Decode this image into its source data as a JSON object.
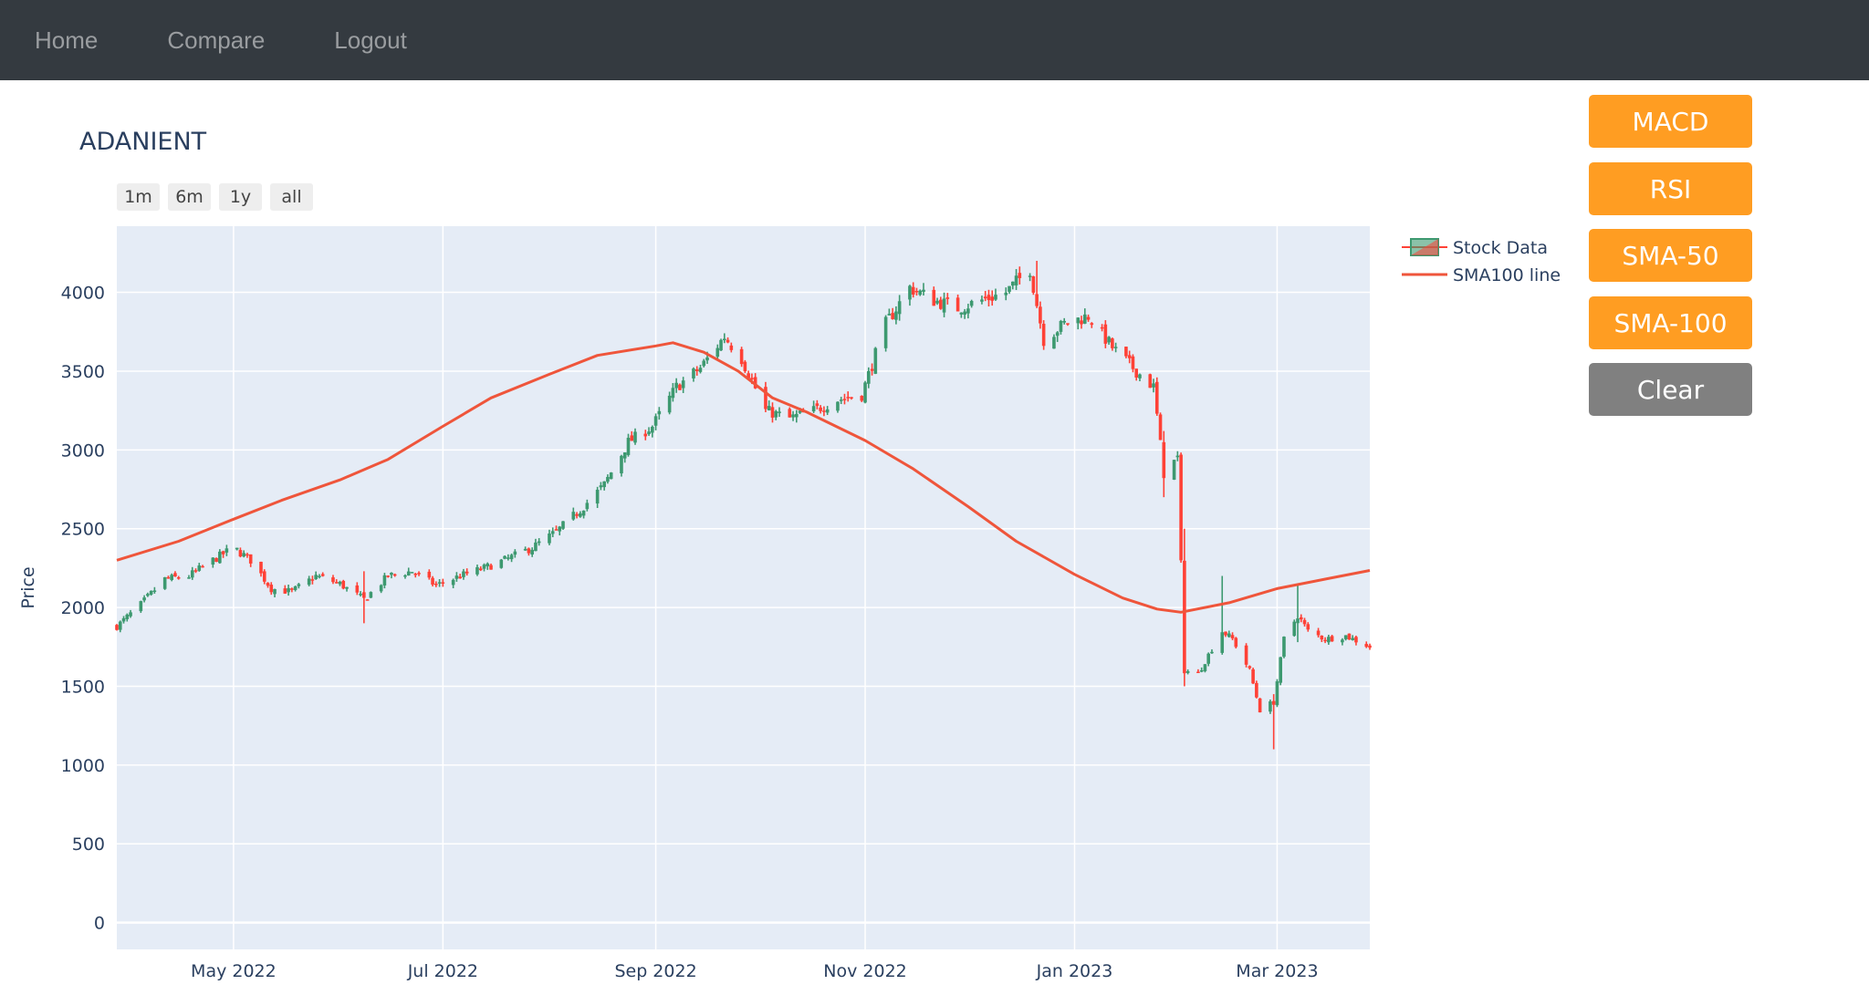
{
  "nav": {
    "home": "Home",
    "compare": "Compare",
    "logout": "Logout"
  },
  "side_buttons": {
    "macd": "MACD",
    "rsi": "RSI",
    "sma50": "SMA-50",
    "sma100": "SMA-100",
    "clear": "Clear"
  },
  "range_buttons": [
    "1m",
    "6m",
    "1y",
    "all"
  ],
  "colors": {
    "increasing": "#3d9970",
    "decreasing": "#ff4136",
    "sma_line": "#ef553b",
    "plot_bg": "#e5ecf6",
    "orange": "#ff9d22",
    "gray": "#808080"
  },
  "chart_data": {
    "type": "candlestick",
    "title": "ADANIENT",
    "ylabel": "Price",
    "xlabel": "",
    "grid": true,
    "legend_position": "top-right",
    "xlim": [
      "2022-03-28",
      "2023-03-28"
    ],
    "ylim": [
      -170,
      4420
    ],
    "y_ticks": [
      0,
      500,
      1000,
      1500,
      2000,
      2500,
      3000,
      3500,
      4000
    ],
    "x_ticks": [
      {
        "date": "2022-05-01",
        "label": "May 2022"
      },
      {
        "date": "2022-07-01",
        "label": "Jul 2022"
      },
      {
        "date": "2022-09-01",
        "label": "Sep 2022"
      },
      {
        "date": "2022-11-01",
        "label": "Nov 2022"
      },
      {
        "date": "2023-01-01",
        "label": "Jan 2023"
      },
      {
        "date": "2023-03-01",
        "label": "Mar 2023"
      }
    ],
    "legend": [
      "Stock Data",
      "SMA100 line"
    ],
    "series": [
      {
        "name": "Stock Data",
        "type": "candlestick",
        "close_anchors": [
          [
            "2022-03-28",
            1880
          ],
          [
            "2022-04-04",
            2020
          ],
          [
            "2022-04-11",
            2180
          ],
          [
            "2022-04-18",
            2200
          ],
          [
            "2022-04-25",
            2300
          ],
          [
            "2022-05-01",
            2380
          ],
          [
            "2022-05-06",
            2300
          ],
          [
            "2022-05-12",
            2120
          ],
          [
            "2022-05-18",
            2100
          ],
          [
            "2022-05-25",
            2200
          ],
          [
            "2022-06-01",
            2150
          ],
          [
            "2022-06-08",
            2050
          ],
          [
            "2022-06-15",
            2200
          ],
          [
            "2022-06-22",
            2230
          ],
          [
            "2022-06-29",
            2140
          ],
          [
            "2022-07-06",
            2200
          ],
          [
            "2022-07-13",
            2250
          ],
          [
            "2022-07-20",
            2310
          ],
          [
            "2022-07-27",
            2380
          ],
          [
            "2022-08-03",
            2480
          ],
          [
            "2022-08-10",
            2620
          ],
          [
            "2022-08-17",
            2780
          ],
          [
            "2022-08-24",
            3050
          ],
          [
            "2022-08-31",
            3150
          ],
          [
            "2022-09-07",
            3400
          ],
          [
            "2022-09-14",
            3520
          ],
          [
            "2022-09-21",
            3720
          ],
          [
            "2022-09-26",
            3580
          ],
          [
            "2022-10-03",
            3250
          ],
          [
            "2022-10-10",
            3200
          ],
          [
            "2022-10-17",
            3250
          ],
          [
            "2022-10-24",
            3320
          ],
          [
            "2022-10-31",
            3350
          ],
          [
            "2022-11-07",
            3800
          ],
          [
            "2022-11-14",
            4030
          ],
          [
            "2022-11-21",
            3950
          ],
          [
            "2022-11-28",
            3900
          ],
          [
            "2022-12-05",
            3950
          ],
          [
            "2022-12-12",
            4000
          ],
          [
            "2022-12-19",
            4150
          ],
          [
            "2022-12-23",
            3700
          ],
          [
            "2022-12-29",
            3800
          ],
          [
            "2023-01-05",
            3850
          ],
          [
            "2023-01-12",
            3650
          ],
          [
            "2023-01-19",
            3500
          ],
          [
            "2023-01-24",
            3400
          ],
          [
            "2023-01-27",
            2850
          ],
          [
            "2023-01-31",
            2950
          ],
          [
            "2023-02-02",
            1600
          ],
          [
            "2023-02-06",
            1580
          ],
          [
            "2023-02-09",
            1700
          ],
          [
            "2023-02-13",
            1850
          ],
          [
            "2023-02-16",
            1800
          ],
          [
            "2023-02-21",
            1600
          ],
          [
            "2023-02-24",
            1350
          ],
          [
            "2023-02-28",
            1400
          ],
          [
            "2023-03-03",
            1800
          ],
          [
            "2023-03-07",
            1950
          ],
          [
            "2023-03-10",
            1850
          ],
          [
            "2023-03-15",
            1800
          ],
          [
            "2023-03-21",
            1820
          ],
          [
            "2023-03-28",
            1750
          ]
        ],
        "spikes": [
          [
            "2022-06-08",
            1900,
            2230
          ],
          [
            "2023-01-27",
            2700,
            3120
          ],
          [
            "2023-02-02",
            1500,
            2500
          ],
          [
            "2023-02-04",
            1000,
            1600
          ],
          [
            "2023-02-13",
            1700,
            2200
          ],
          [
            "2023-02-28",
            1100,
            1450
          ],
          [
            "2023-03-07",
            1780,
            2150
          ],
          [
            "2022-12-21",
            3900,
            4200
          ]
        ]
      },
      {
        "name": "SMA100 line",
        "type": "line",
        "points": [
          [
            "2022-03-28",
            2300
          ],
          [
            "2022-04-15",
            2420
          ],
          [
            "2022-05-01",
            2560
          ],
          [
            "2022-05-15",
            2680
          ],
          [
            "2022-06-01",
            2810
          ],
          [
            "2022-06-15",
            2940
          ],
          [
            "2022-07-01",
            3150
          ],
          [
            "2022-07-15",
            3330
          ],
          [
            "2022-08-01",
            3480
          ],
          [
            "2022-08-15",
            3600
          ],
          [
            "2022-09-01",
            3660
          ],
          [
            "2022-09-06",
            3680
          ],
          [
            "2022-09-15",
            3620
          ],
          [
            "2022-09-25",
            3500
          ],
          [
            "2022-10-05",
            3330
          ],
          [
            "2022-10-15",
            3240
          ],
          [
            "2022-11-01",
            3060
          ],
          [
            "2022-11-15",
            2880
          ],
          [
            "2022-12-01",
            2640
          ],
          [
            "2022-12-15",
            2420
          ],
          [
            "2023-01-01",
            2210
          ],
          [
            "2023-01-15",
            2060
          ],
          [
            "2023-01-25",
            1990
          ],
          [
            "2023-02-01",
            1970
          ],
          [
            "2023-02-15",
            2030
          ],
          [
            "2023-03-01",
            2120
          ],
          [
            "2023-03-15",
            2180
          ],
          [
            "2023-03-28",
            2235
          ]
        ]
      }
    ]
  }
}
